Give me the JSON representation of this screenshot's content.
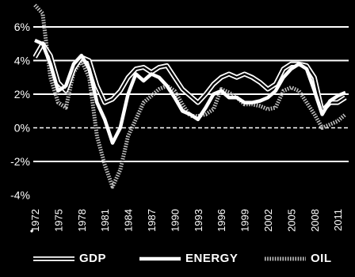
{
  "chart_data": {
    "type": "line",
    "title": "",
    "xlabel": "",
    "ylabel": "",
    "ylim": [
      -4,
      7
    ],
    "grid": "horizontal",
    "legend_position": "bottom",
    "y_ticks": [
      "6%",
      "4%",
      "2%",
      "0%",
      "-2%",
      "-4%"
    ],
    "x_ticks": [
      "1972",
      "1975",
      "1978",
      "1981",
      "1984",
      "1987",
      "1990",
      "1993",
      "1996",
      "1999",
      "2002",
      "2005",
      "2008",
      "2011"
    ],
    "x": [
      1972,
      1973,
      1974,
      1975,
      1976,
      1977,
      1978,
      1979,
      1980,
      1981,
      1982,
      1983,
      1984,
      1985,
      1986,
      1987,
      1988,
      1989,
      1990,
      1991,
      1992,
      1993,
      1994,
      1995,
      1996,
      1997,
      1998,
      1999,
      2000,
      2001,
      2002,
      2003,
      2004,
      2005,
      2006,
      2007,
      2008,
      2009,
      2010,
      2011,
      2012
    ],
    "series": [
      {
        "name": "GDP",
        "style": "double",
        "values": [
          4.2,
          5.0,
          4.3,
          2.7,
          2.2,
          3.5,
          4.2,
          4.0,
          2.5,
          1.5,
          1.7,
          2.2,
          3.0,
          3.5,
          3.6,
          3.3,
          3.6,
          3.7,
          3.0,
          2.3,
          1.9,
          1.5,
          2.0,
          2.6,
          3.0,
          3.2,
          3.0,
          3.2,
          3.0,
          2.7,
          2.3,
          2.6,
          3.5,
          3.8,
          3.8,
          3.7,
          3.0,
          1.0,
          1.5,
          1.5,
          1.8
        ]
      },
      {
        "name": "ENERGY",
        "style": "thick",
        "values": [
          5.2,
          5.0,
          3.8,
          2.2,
          2.5,
          3.8,
          4.3,
          3.5,
          1.5,
          0.5,
          -0.9,
          0.0,
          2.0,
          3.2,
          2.8,
          3.2,
          3.0,
          2.5,
          1.8,
          1.0,
          0.8,
          0.5,
          1.2,
          2.0,
          2.2,
          1.8,
          1.8,
          1.5,
          1.5,
          1.6,
          1.8,
          2.2,
          3.0,
          3.5,
          3.8,
          3.5,
          2.2,
          0.8,
          1.6,
          1.9,
          2.1
        ]
      },
      {
        "name": "OIL",
        "style": "dotted",
        "values": [
          7.3,
          6.8,
          3.0,
          1.5,
          1.2,
          3.3,
          4.0,
          3.0,
          -0.5,
          -2.2,
          -3.5,
          -2.5,
          -0.5,
          0.5,
          1.5,
          1.9,
          2.3,
          2.5,
          2.2,
          1.4,
          0.7,
          0.7,
          0.8,
          1.1,
          2.3,
          2.1,
          1.8,
          1.4,
          1.4,
          1.3,
          1.1,
          1.2,
          2.2,
          2.4,
          2.2,
          1.5,
          0.8,
          0.0,
          0.2,
          0.4,
          0.8
        ]
      }
    ]
  },
  "legend": {
    "gdp": "GDP",
    "energy": "ENERGY",
    "oil": "OIL"
  },
  "colors": {
    "background": "#000000",
    "foreground": "#ffffff",
    "oil": "#bdbdbd"
  }
}
